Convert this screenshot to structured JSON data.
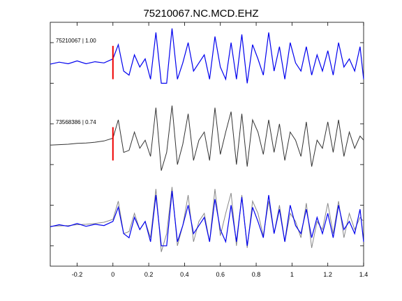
{
  "chart_data": {
    "type": "line",
    "title": "75210067.NC.MCD.EHZ",
    "xlim": [
      -0.35,
      1.4
    ],
    "ylim": [
      0,
      6
    ],
    "x_ticks": [
      -0.2,
      0,
      0.2,
      0.4,
      0.6,
      0.8,
      1,
      1.2,
      1.4
    ],
    "x_tick_labels": [
      "-0.2",
      "0",
      "0.2",
      "0.4",
      "0.6",
      "0.8",
      "1",
      "1.2",
      "1.4"
    ],
    "y_ticks": [
      0.5,
      1.5,
      2.5,
      3.5,
      4.5,
      5.5
    ],
    "grid": false,
    "pick_time": 0,
    "colors": {
      "primary": "#0000ee",
      "secondary": "#333333",
      "overlay_secondary": "#888888",
      "pick": "#ee0000"
    },
    "series": [
      {
        "name": "75210067 | 1.00",
        "baseline": 5,
        "x": [
          -0.35,
          -0.3,
          -0.25,
          -0.2,
          -0.15,
          -0.1,
          -0.05,
          0,
          0.03,
          0.06,
          0.09,
          0.12,
          0.15,
          0.18,
          0.21,
          0.24,
          0.27,
          0.3,
          0.33,
          0.36,
          0.39,
          0.42,
          0.45,
          0.48,
          0.51,
          0.54,
          0.57,
          0.6,
          0.63,
          0.66,
          0.69,
          0.72,
          0.75,
          0.78,
          0.81,
          0.84,
          0.87,
          0.9,
          0.93,
          0.96,
          0.99,
          1.02,
          1.05,
          1.08,
          1.11,
          1.14,
          1.17,
          1.2,
          1.23,
          1.26,
          1.29,
          1.32,
          1.35,
          1.38,
          1.4
        ],
        "values": [
          4.97,
          5.02,
          4.98,
          5.05,
          4.98,
          5.03,
          5.0,
          5.1,
          5.45,
          4.8,
          4.7,
          5.2,
          4.9,
          5.1,
          4.6,
          5.75,
          4.5,
          4.5,
          5.85,
          4.6,
          5.0,
          5.5,
          4.8,
          5.0,
          5.2,
          4.6,
          5.65,
          4.9,
          4.6,
          5.5,
          4.6,
          5.7,
          4.5,
          5.45,
          5.1,
          4.7,
          5.75,
          4.8,
          5.4,
          4.6,
          5.5,
          5.0,
          4.8,
          5.4,
          4.7,
          5.2,
          4.8,
          5.3,
          4.7,
          5.5,
          4.9,
          5.1,
          4.8,
          5.4,
          4.6
        ]
      },
      {
        "name": "73568386 | 0.74",
        "baseline": 3,
        "x": [
          -0.35,
          -0.3,
          -0.25,
          -0.2,
          -0.15,
          -0.1,
          -0.05,
          0,
          0.03,
          0.06,
          0.09,
          0.12,
          0.15,
          0.18,
          0.21,
          0.24,
          0.27,
          0.3,
          0.33,
          0.36,
          0.39,
          0.42,
          0.45,
          0.48,
          0.51,
          0.54,
          0.57,
          0.6,
          0.63,
          0.66,
          0.69,
          0.72,
          0.75,
          0.78,
          0.81,
          0.84,
          0.87,
          0.9,
          0.93,
          0.96,
          0.99,
          1.02,
          1.05,
          1.08,
          1.11,
          1.14,
          1.17,
          1.2,
          1.23,
          1.26,
          1.29,
          1.32,
          1.35,
          1.38,
          1.4
        ],
        "values": [
          2.98,
          2.99,
          3.0,
          3.02,
          3.03,
          3.05,
          3.08,
          3.15,
          3.6,
          2.8,
          2.85,
          3.3,
          2.9,
          3.1,
          2.7,
          3.9,
          2.35,
          2.8,
          3.95,
          2.5,
          3.0,
          3.75,
          2.6,
          3.1,
          3.3,
          2.6,
          3.9,
          2.75,
          3.3,
          3.8,
          2.5,
          3.75,
          2.45,
          3.6,
          3.3,
          2.75,
          3.6,
          2.8,
          3.5,
          2.6,
          3.3,
          3.1,
          2.7,
          3.55,
          2.45,
          3.1,
          2.9,
          3.55,
          2.8,
          3.6,
          2.7,
          3.3,
          2.9,
          3.2,
          3.1
        ]
      }
    ],
    "overlay_baseline": 1
  }
}
